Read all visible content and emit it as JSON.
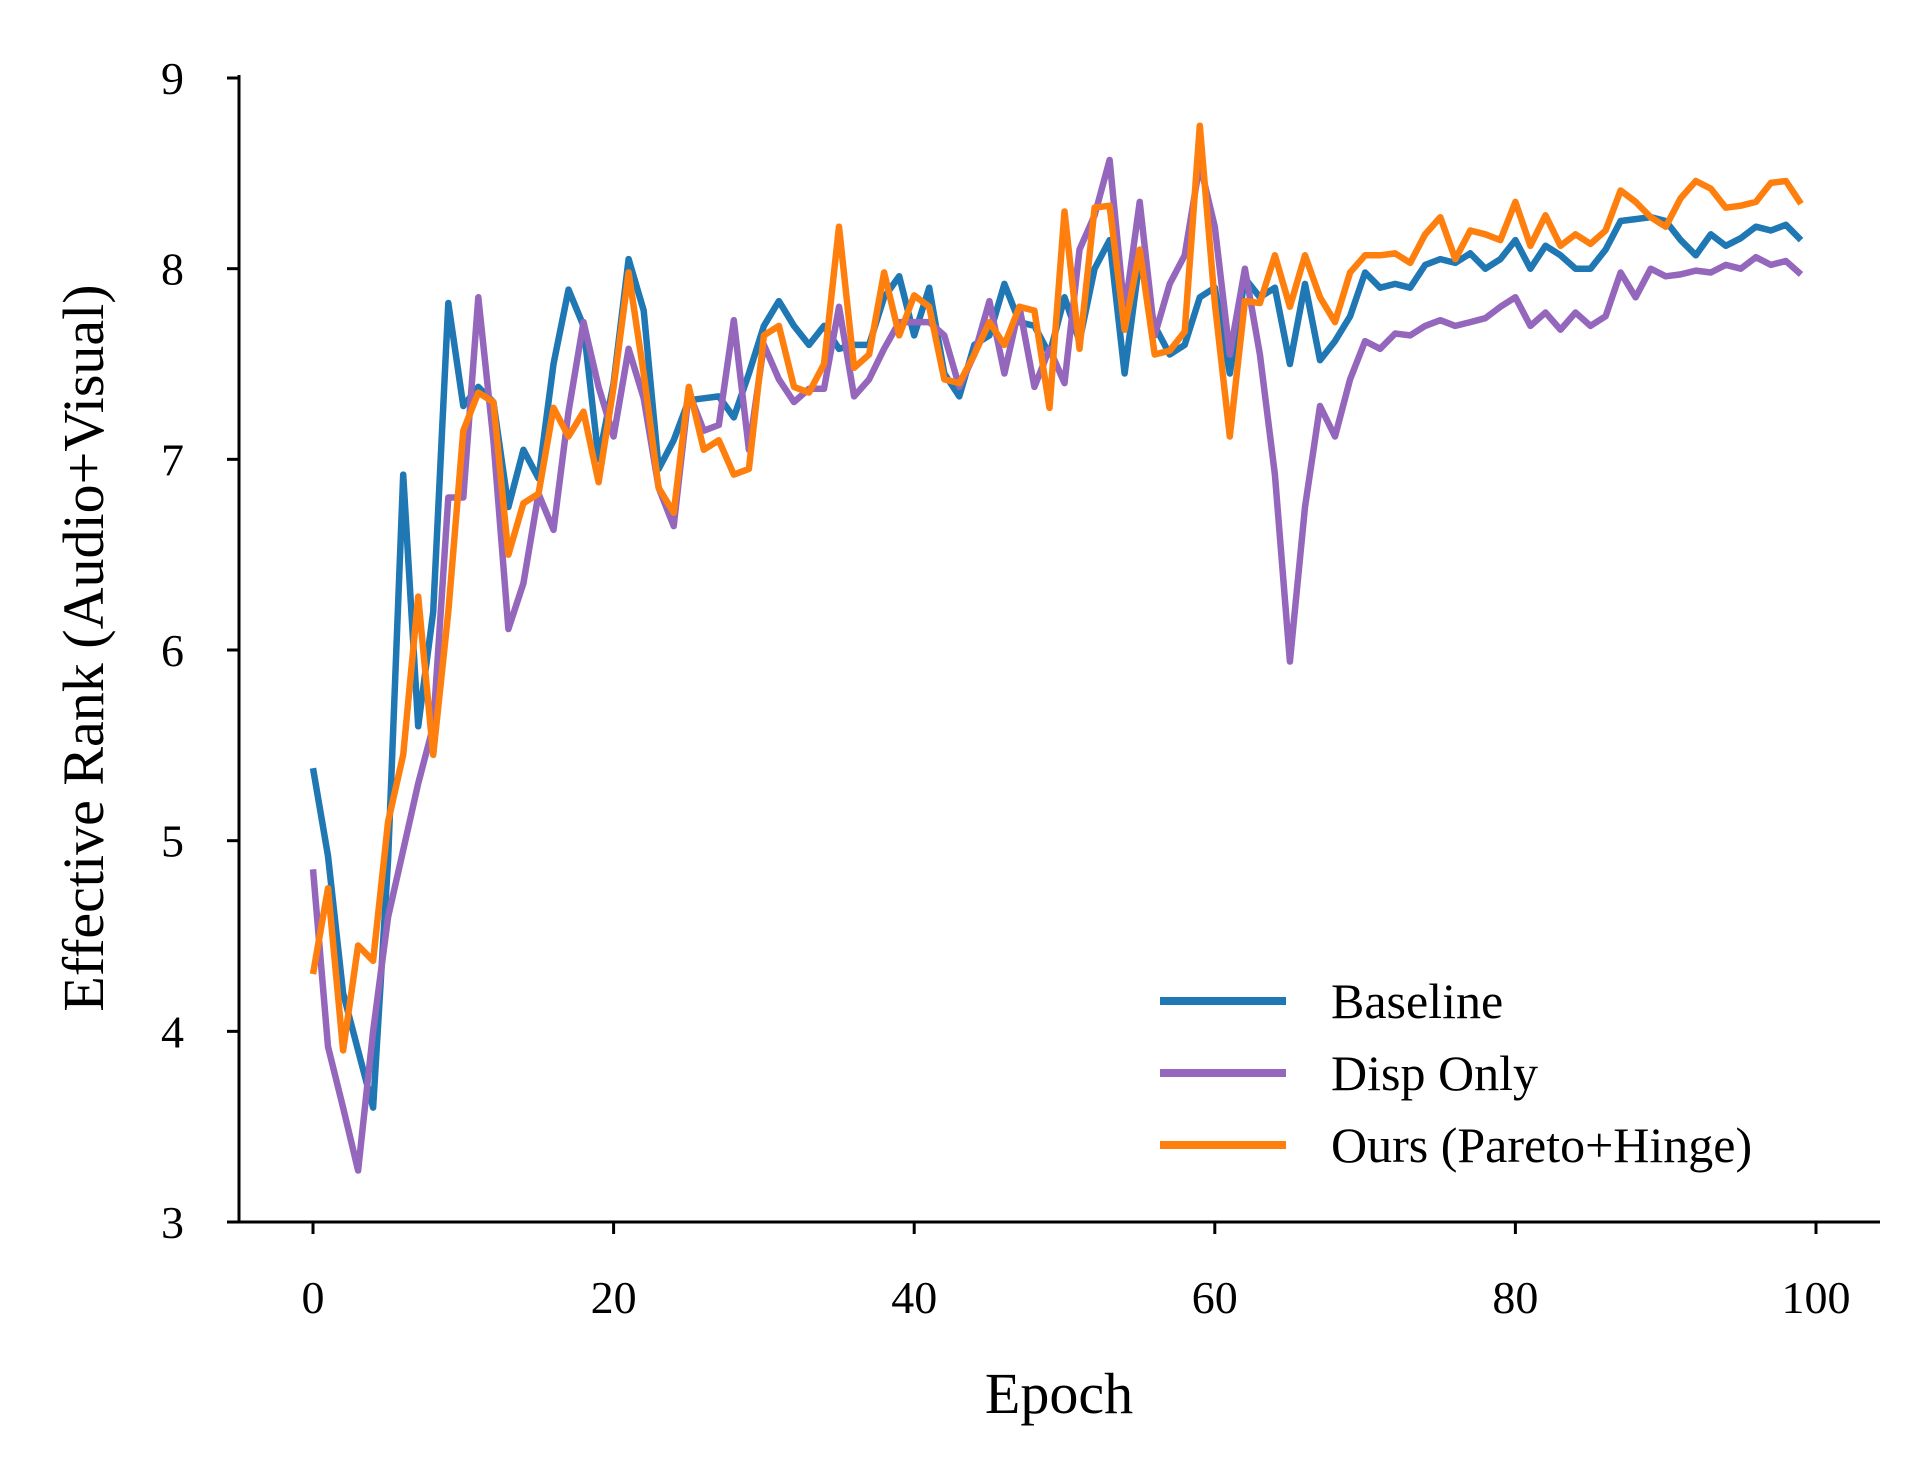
{
  "chart_data": {
    "type": "line",
    "title": "",
    "xlabel": "Epoch",
    "ylabel": "Effective Rank (Audio+Visual)",
    "xlim": [
      -5,
      104
    ],
    "ylim": [
      3,
      9
    ],
    "xticks": [
      0,
      20,
      40,
      60,
      80,
      100
    ],
    "xtick_labels": [
      "0",
      "20",
      "40",
      "60",
      "80",
      "100"
    ],
    "yticks": [
      3,
      4,
      5,
      6,
      7,
      8,
      9
    ],
    "ytick_labels": [
      "3",
      "4",
      "5",
      "6",
      "7",
      "8",
      "9"
    ],
    "grid": false,
    "legend_position": "lower-right",
    "x": [
      0,
      1,
      2,
      3,
      4,
      5,
      6,
      7,
      8,
      9,
      10,
      11,
      12,
      13,
      14,
      15,
      16,
      17,
      18,
      19,
      20,
      21,
      22,
      23,
      24,
      25,
      26,
      27,
      28,
      29,
      30,
      31,
      32,
      33,
      34,
      35,
      36,
      37,
      38,
      39,
      40,
      41,
      42,
      43,
      44,
      45,
      46,
      47,
      48,
      49,
      50,
      51,
      52,
      53,
      54,
      55,
      56,
      57,
      58,
      59,
      60,
      61,
      62,
      63,
      64,
      65,
      66,
      67,
      68,
      69,
      70,
      71,
      72,
      73,
      74,
      75,
      76,
      77,
      78,
      79,
      80,
      81,
      82,
      83,
      84,
      85,
      86,
      87,
      88,
      89,
      90,
      91,
      92,
      93,
      94,
      95,
      96,
      97,
      98,
      99
    ],
    "series": [
      {
        "name": "Baseline",
        "color": "#1f77b4",
        "values": [
          5.38,
          4.92,
          4.2,
          3.9,
          3.6,
          4.9,
          6.92,
          5.6,
          6.2,
          7.82,
          7.28,
          7.38,
          7.3,
          6.75,
          7.05,
          6.9,
          7.5,
          7.89,
          7.7,
          7.0,
          7.4,
          8.05,
          7.78,
          6.95,
          7.1,
          7.31,
          7.32,
          7.33,
          7.22,
          7.45,
          7.7,
          7.83,
          7.7,
          7.6,
          7.7,
          7.58,
          7.6,
          7.6,
          7.85,
          7.96,
          7.65,
          7.9,
          7.45,
          7.33,
          7.6,
          7.65,
          7.92,
          7.72,
          7.7,
          7.55,
          7.85,
          7.62,
          8.0,
          8.15,
          7.45,
          8.05,
          7.7,
          7.55,
          7.6,
          7.85,
          7.9,
          7.45,
          7.95,
          7.85,
          7.9,
          7.5,
          7.92,
          7.52,
          7.62,
          7.75,
          7.98,
          7.9,
          7.92,
          7.9,
          8.02,
          8.05,
          8.03,
          8.08,
          8.0,
          8.05,
          8.15,
          8.0,
          8.12,
          8.07,
          8.0,
          8.0,
          8.1,
          8.25,
          8.26,
          8.27,
          8.25,
          8.15,
          8.07,
          8.18,
          8.12,
          8.16,
          8.22,
          8.2,
          8.23,
          8.15
        ]
      },
      {
        "name": "Disp Only",
        "color": "#9467bd",
        "values": [
          4.85,
          3.92,
          3.6,
          3.27,
          4.0,
          4.6,
          4.95,
          5.3,
          5.6,
          6.8,
          6.8,
          7.85,
          7.1,
          6.11,
          6.35,
          6.82,
          6.63,
          7.25,
          7.72,
          7.38,
          7.12,
          7.58,
          7.32,
          6.85,
          6.65,
          7.35,
          7.15,
          7.18,
          7.73,
          7.05,
          7.6,
          7.42,
          7.3,
          7.37,
          7.37,
          7.8,
          7.33,
          7.42,
          7.58,
          7.72,
          7.72,
          7.72,
          7.65,
          7.38,
          7.55,
          7.83,
          7.45,
          7.8,
          7.38,
          7.58,
          7.4,
          8.1,
          8.28,
          8.57,
          7.77,
          8.35,
          7.65,
          7.92,
          8.07,
          8.55,
          8.22,
          7.55,
          8.0,
          7.55,
          6.92,
          5.94,
          6.75,
          7.28,
          7.12,
          7.42,
          7.62,
          7.58,
          7.66,
          7.65,
          7.7,
          7.73,
          7.7,
          7.72,
          7.74,
          7.8,
          7.85,
          7.7,
          7.77,
          7.68,
          7.77,
          7.7,
          7.75,
          7.98,
          7.85,
          8.0,
          7.96,
          7.97,
          7.99,
          7.98,
          8.02,
          8.0,
          8.06,
          8.02,
          8.04,
          7.97
        ]
      },
      {
        "name": "Ours (Pareto+Hinge)",
        "color": "#ff7f0e",
        "values": [
          4.3,
          4.75,
          3.9,
          4.45,
          4.37,
          5.1,
          5.45,
          6.28,
          5.45,
          6.2,
          7.15,
          7.35,
          7.3,
          6.5,
          6.77,
          6.82,
          7.27,
          7.12,
          7.25,
          6.88,
          7.38,
          7.98,
          7.45,
          6.85,
          6.72,
          7.38,
          7.05,
          7.1,
          6.92,
          6.95,
          7.65,
          7.7,
          7.38,
          7.35,
          7.5,
          8.22,
          7.48,
          7.55,
          7.98,
          7.65,
          7.86,
          7.8,
          7.42,
          7.4,
          7.55,
          7.72,
          7.6,
          7.8,
          7.78,
          7.27,
          8.3,
          7.58,
          8.32,
          8.33,
          7.68,
          8.1,
          7.55,
          7.57,
          7.67,
          8.75,
          7.82,
          7.12,
          7.83,
          7.82,
          8.07,
          7.8,
          8.07,
          7.85,
          7.72,
          7.98,
          8.07,
          8.07,
          8.08,
          8.03,
          8.18,
          8.27,
          8.05,
          8.2,
          8.18,
          8.15,
          8.35,
          8.12,
          8.28,
          8.12,
          8.18,
          8.13,
          8.2,
          8.41,
          8.35,
          8.27,
          8.22,
          8.37,
          8.46,
          8.42,
          8.32,
          8.33,
          8.35,
          8.45,
          8.46,
          8.34
        ]
      }
    ]
  }
}
